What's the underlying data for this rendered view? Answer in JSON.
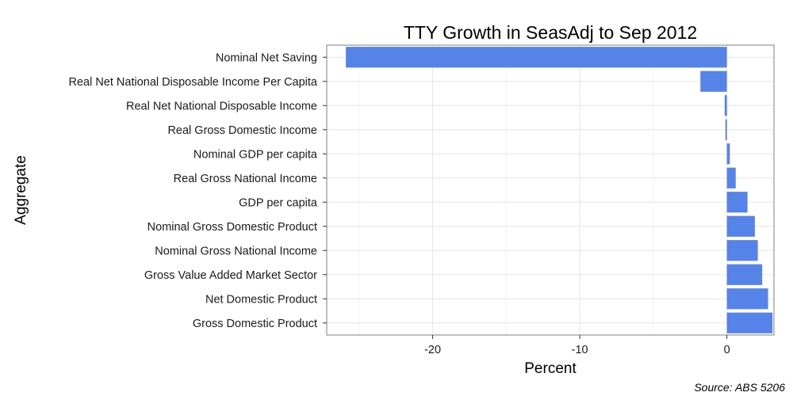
{
  "chart_data": {
    "type": "bar",
    "orientation": "horizontal",
    "title": "TTY Growth in SeasAdj to Sep 2012",
    "xlabel": "Percent",
    "ylabel": "Aggregate",
    "categories": [
      "Nominal Net Saving",
      "Real Net National Disposable Income Per Capita",
      "Real Net National Disposable Income",
      "Real Gross Domestic Income",
      "Nominal GDP per capita",
      "Real Gross National Income",
      "GDP per capita",
      "Nominal Gross Domestic Product",
      "Nominal Gross National Income",
      "Gross Value Added Market Sector",
      "Net Domestic Product",
      "Gross Domestic Product"
    ],
    "values": [
      -25.9,
      -1.8,
      -0.15,
      -0.1,
      0.2,
      0.6,
      1.4,
      1.9,
      2.1,
      2.4,
      2.8,
      3.1
    ],
    "xlim": [
      -27.2,
      3.2
    ],
    "xticks": [
      -20,
      -10,
      0
    ],
    "xtick_labels": [
      "-20",
      "-10",
      "0"
    ],
    "grid": true,
    "bar_color": "#5683e8",
    "source": "Source: ABS 5206"
  }
}
